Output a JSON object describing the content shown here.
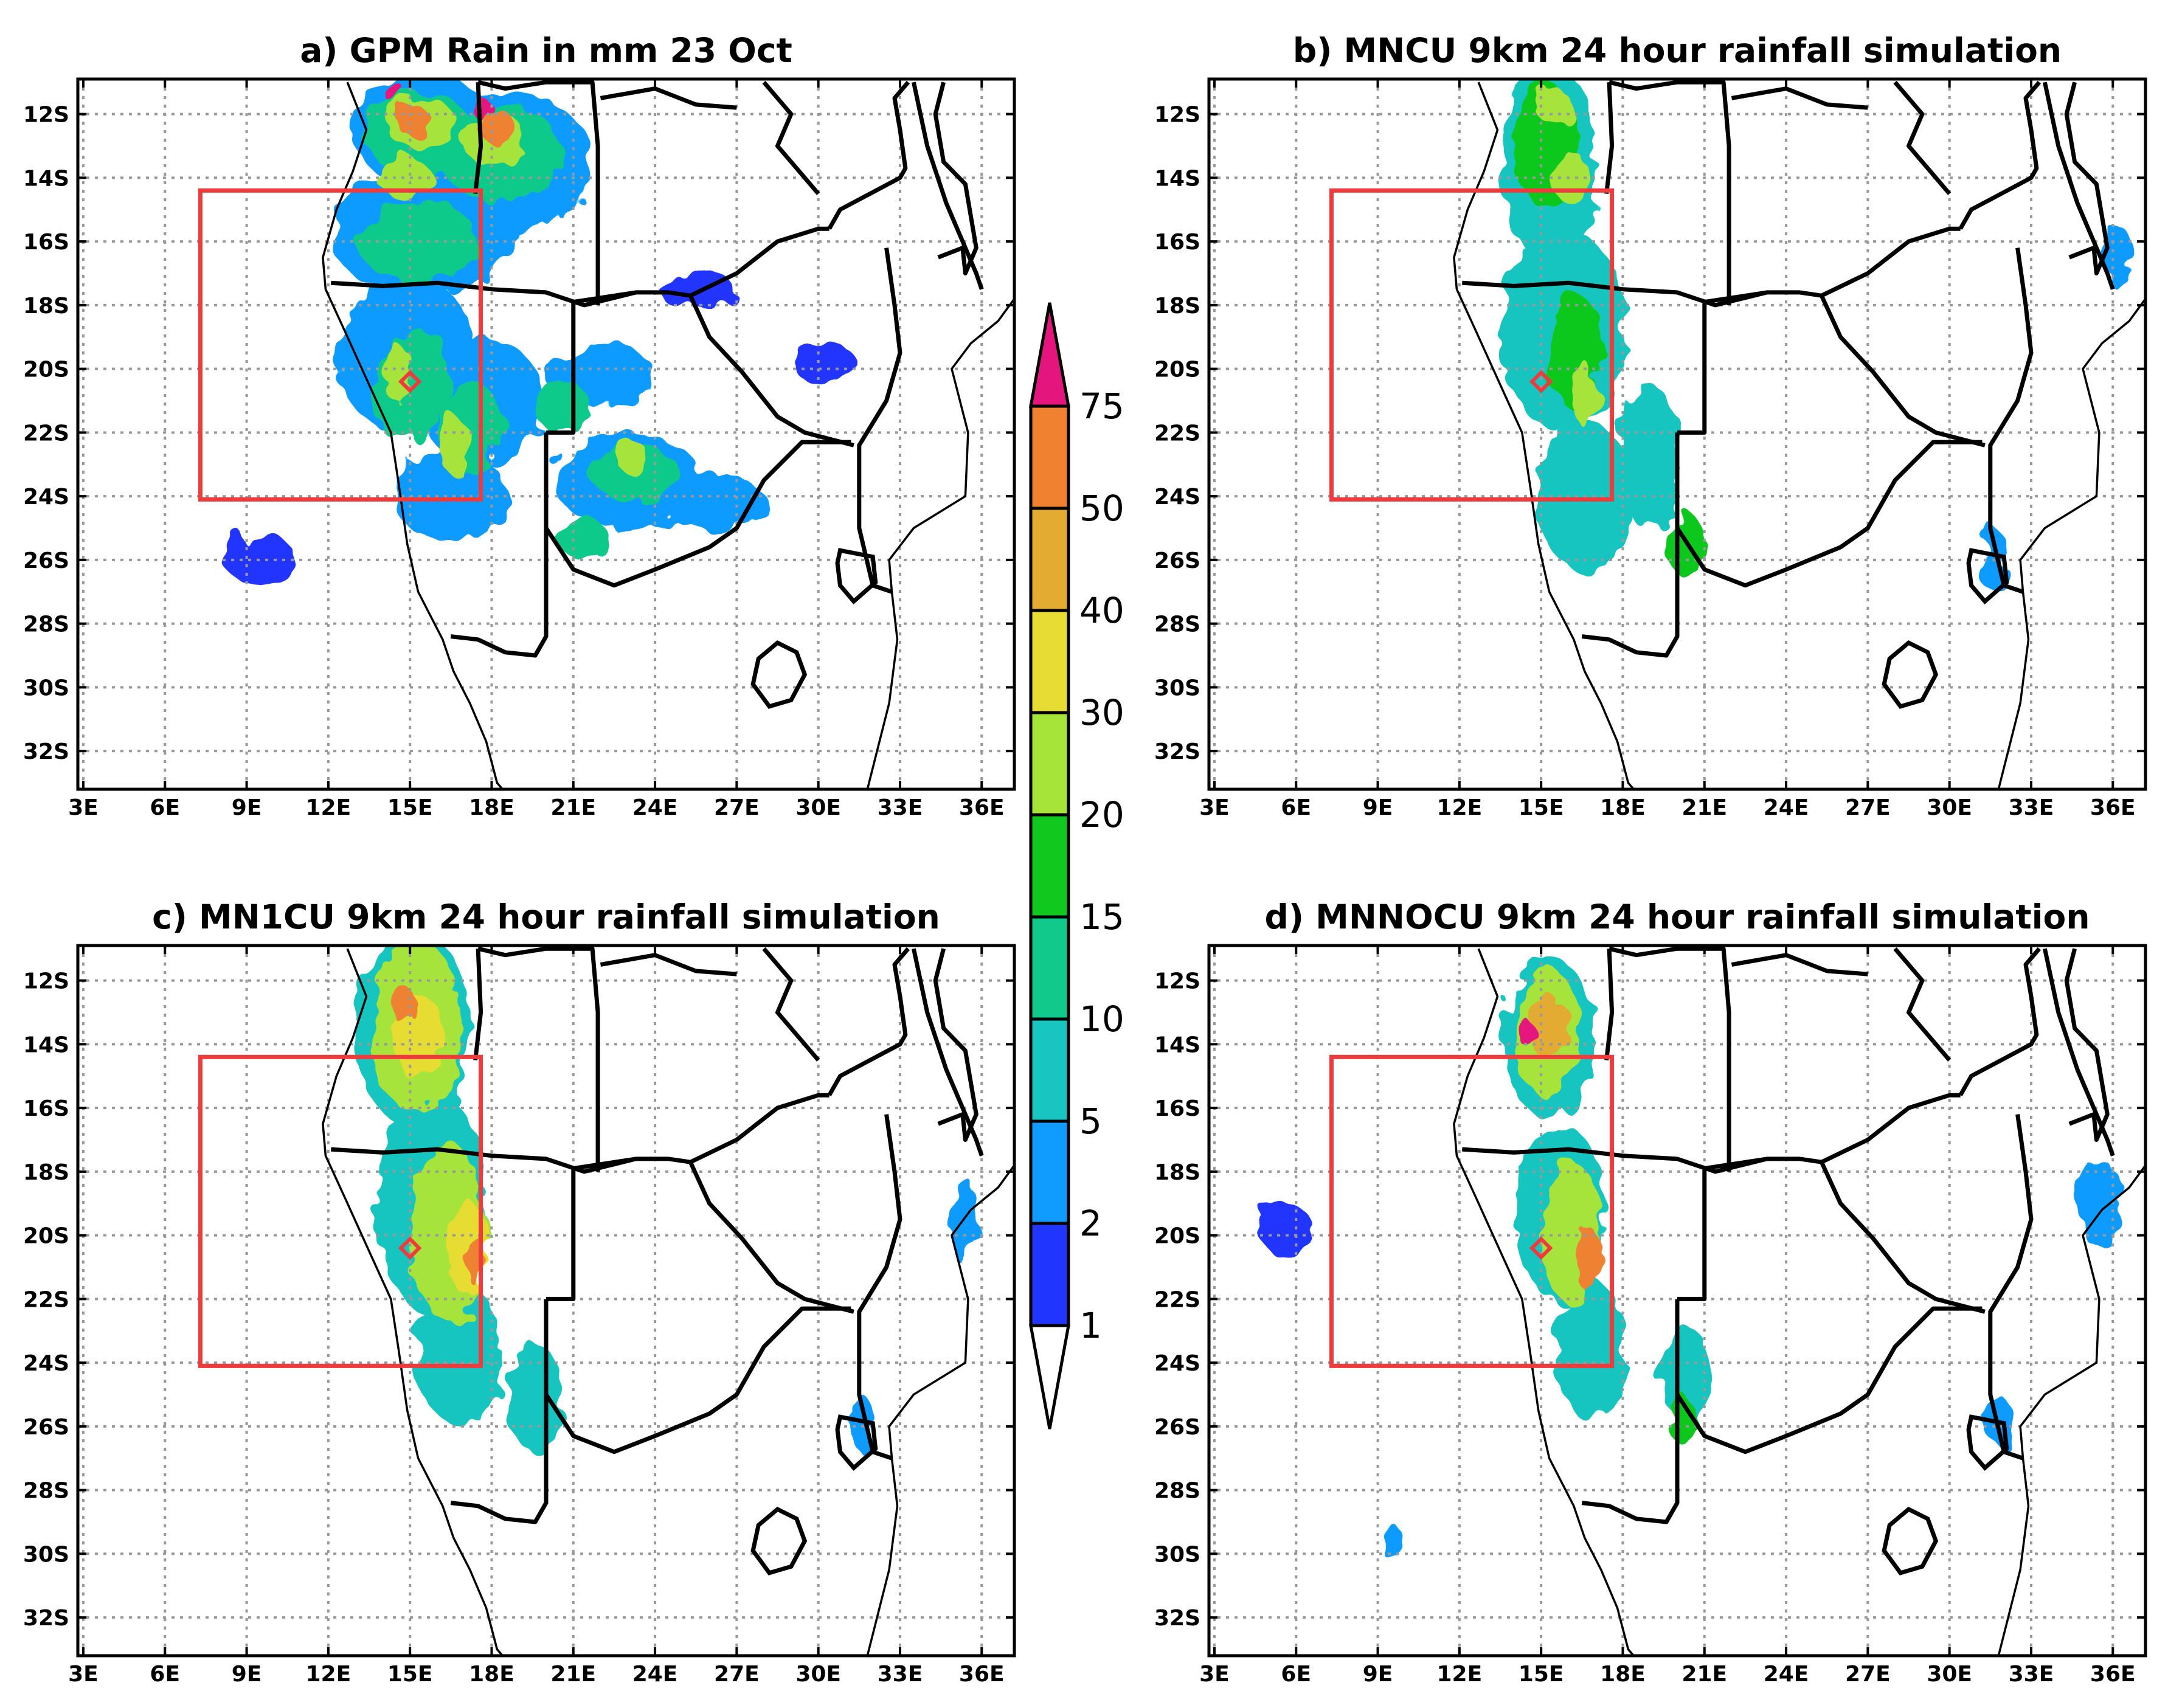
{
  "figure": {
    "grid": true,
    "panels": [
      {
        "id": "a",
        "title": "a) GPM Rain in mm 23 Oct",
        "rain": "obs"
      },
      {
        "id": "b",
        "title": "b) MNCU 9km 24 hour rainfall simulation",
        "rain": "b"
      },
      {
        "id": "c",
        "title": "c) MN1CU 9km 24 hour rainfall simulation",
        "rain": "c"
      },
      {
        "id": "d",
        "title": "d) MNNOCU 9km 24 hour rainfall simulation",
        "rain": "d"
      }
    ],
    "lon_ticks": [
      "3E",
      "6E",
      "9E",
      "12E",
      "15E",
      "18E",
      "21E",
      "24E",
      "27E",
      "30E",
      "33E",
      "36E"
    ],
    "lon_values": [
      3,
      6,
      9,
      12,
      15,
      18,
      21,
      24,
      27,
      30,
      33,
      36
    ],
    "lat_ticks": [
      "12S",
      "14S",
      "16S",
      "18S",
      "20S",
      "22S",
      "24S",
      "26S",
      "28S",
      "30S",
      "32S"
    ],
    "lat_values": [
      -12,
      -14,
      -16,
      -18,
      -20,
      -22,
      -24,
      -26,
      -28,
      -30,
      -32
    ],
    "lon_range": [
      2.8,
      37.2
    ],
    "lat_range": [
      -33.2,
      -10.9
    ],
    "box": {
      "lon": [
        7.3,
        17.6
      ],
      "lat": [
        -24.1,
        -14.4
      ],
      "color": "#ee3b3b"
    },
    "marker": {
      "lon": 15.0,
      "lat": -20.4,
      "color": "#ee3b3b",
      "shape": "diamond"
    }
  },
  "colorbar": {
    "levels": [
      "1",
      "2",
      "5",
      "10",
      "15",
      "20",
      "30",
      "40",
      "50",
      "75"
    ],
    "colors": [
      "#2036ff",
      "#0f9bff",
      "#19c5c0",
      "#10c98a",
      "#10c81e",
      "#a6e43a",
      "#e6dc33",
      "#e4ab33",
      "#ef8130",
      "#e5157e"
    ],
    "extend": "both"
  },
  "colors": {
    "box": "#ee3b3b",
    "coast": "#000000",
    "grid": "#999999"
  }
}
